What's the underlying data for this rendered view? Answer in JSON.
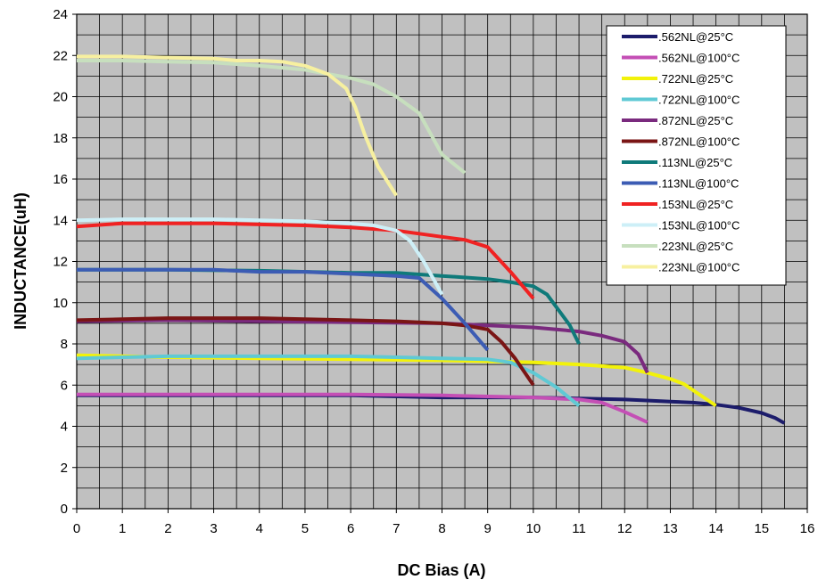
{
  "chart_data": {
    "type": "line",
    "title": "",
    "xlabel": "DC Bias (A)",
    "ylabel": "INDUCTANCE(uH)",
    "xlim": [
      0,
      16
    ],
    "ylim": [
      0,
      24
    ],
    "xticks": [
      "0",
      "1",
      "2",
      "3",
      "4",
      "5",
      "6",
      "7",
      "8",
      "9",
      "10",
      "11",
      "12",
      "13",
      "14",
      "15",
      "16"
    ],
    "yticks": [
      "0",
      "2",
      "4",
      "6",
      "8",
      "10",
      "12",
      "14",
      "16",
      "18",
      "20",
      "22",
      "24"
    ],
    "grid": true,
    "plot_background": "#c0c0c0",
    "legend_position": "top-right",
    "series": [
      {
        "name": ".562NL@25°C",
        "color": "#1c1c6b",
        "points": [
          [
            0,
            5.5
          ],
          [
            2,
            5.5
          ],
          [
            4,
            5.5
          ],
          [
            6,
            5.5
          ],
          [
            8,
            5.4
          ],
          [
            10,
            5.4
          ],
          [
            11,
            5.35
          ],
          [
            12,
            5.3
          ],
          [
            13,
            5.2
          ],
          [
            13.5,
            5.15
          ],
          [
            14,
            5.05
          ],
          [
            14.5,
            4.9
          ],
          [
            15,
            4.65
          ],
          [
            15.3,
            4.4
          ],
          [
            15.5,
            4.15
          ]
        ]
      },
      {
        "name": ".562NL@100°C",
        "color": "#c44fb5",
        "points": [
          [
            0,
            5.55
          ],
          [
            2,
            5.55
          ],
          [
            4,
            5.55
          ],
          [
            6,
            5.55
          ],
          [
            8,
            5.5
          ],
          [
            10,
            5.4
          ],
          [
            11,
            5.3
          ],
          [
            11.5,
            5.15
          ],
          [
            12,
            4.7
          ],
          [
            12.5,
            4.2
          ]
        ]
      },
      {
        "name": ".722NL@25°C",
        "color": "#f2f20a",
        "points": [
          [
            0,
            7.45
          ],
          [
            2,
            7.35
          ],
          [
            4,
            7.3
          ],
          [
            6,
            7.25
          ],
          [
            8,
            7.2
          ],
          [
            10,
            7.1
          ],
          [
            11,
            7.0
          ],
          [
            12,
            6.85
          ],
          [
            12.5,
            6.6
          ],
          [
            13,
            6.3
          ],
          [
            13.3,
            6.05
          ],
          [
            13.6,
            5.6
          ],
          [
            14,
            5.0
          ]
        ]
      },
      {
        "name": ".722NL@100°C",
        "color": "#5fc9d4",
        "points": [
          [
            0,
            7.3
          ],
          [
            2,
            7.4
          ],
          [
            4,
            7.4
          ],
          [
            6,
            7.4
          ],
          [
            7,
            7.35
          ],
          [
            8,
            7.3
          ],
          [
            9,
            7.25
          ],
          [
            9.5,
            7.1
          ],
          [
            10,
            6.6
          ],
          [
            10.5,
            5.9
          ],
          [
            11,
            5.0
          ]
        ]
      },
      {
        "name": ".872NL@25°C",
        "color": "#7a2a7e",
        "points": [
          [
            0,
            9.1
          ],
          [
            2,
            9.15
          ],
          [
            4,
            9.1
          ],
          [
            6,
            9.05
          ],
          [
            8,
            9.0
          ],
          [
            9,
            8.9
          ],
          [
            10,
            8.8
          ],
          [
            10.5,
            8.7
          ],
          [
            11,
            8.6
          ],
          [
            11.5,
            8.4
          ],
          [
            12,
            8.1
          ],
          [
            12.3,
            7.5
          ],
          [
            12.5,
            6.6
          ]
        ]
      },
      {
        "name": ".872NL@100°C",
        "color": "#7a1515",
        "points": [
          [
            0,
            9.15
          ],
          [
            1,
            9.2
          ],
          [
            2,
            9.25
          ],
          [
            4,
            9.25
          ],
          [
            6,
            9.15
          ],
          [
            7,
            9.1
          ],
          [
            8,
            9.0
          ],
          [
            8.5,
            8.9
          ],
          [
            9,
            8.7
          ],
          [
            9.3,
            8.1
          ],
          [
            9.6,
            7.3
          ],
          [
            10,
            6.0
          ]
        ]
      },
      {
        "name": ".113NL@25°C",
        "color": "#0f7a7a",
        "points": [
          [
            0,
            11.6
          ],
          [
            2,
            11.6
          ],
          [
            4,
            11.55
          ],
          [
            6,
            11.45
          ],
          [
            7,
            11.45
          ],
          [
            8,
            11.3
          ],
          [
            9,
            11.15
          ],
          [
            9.5,
            11.0
          ],
          [
            10,
            10.8
          ],
          [
            10.3,
            10.4
          ],
          [
            10.6,
            9.5
          ],
          [
            10.8,
            8.9
          ],
          [
            11,
            8.0
          ]
        ]
      },
      {
        "name": ".113NL@100°C",
        "color": "#3c5cb4",
        "points": [
          [
            0,
            11.6
          ],
          [
            1,
            11.6
          ],
          [
            2,
            11.6
          ],
          [
            3,
            11.6
          ],
          [
            4,
            11.5
          ],
          [
            5,
            11.5
          ],
          [
            6,
            11.4
          ],
          [
            7,
            11.3
          ],
          [
            7.5,
            11.2
          ],
          [
            8,
            10.2
          ],
          [
            8.5,
            9.0
          ],
          [
            9,
            7.7
          ]
        ]
      },
      {
        "name": ".153NL@25°C",
        "color": "#f02222",
        "points": [
          [
            0,
            13.7
          ],
          [
            1,
            13.85
          ],
          [
            2,
            13.85
          ],
          [
            3,
            13.85
          ],
          [
            4,
            13.8
          ],
          [
            5,
            13.75
          ],
          [
            6,
            13.65
          ],
          [
            7,
            13.5
          ],
          [
            8,
            13.2
          ],
          [
            8.5,
            13.05
          ],
          [
            9,
            12.7
          ],
          [
            9.5,
            11.5
          ],
          [
            10,
            10.2
          ]
        ]
      },
      {
        "name": ".153NL@100°C",
        "color": "#cdeff7",
        "points": [
          [
            0,
            14.0
          ],
          [
            1,
            14.05
          ],
          [
            2,
            14.05
          ],
          [
            3,
            14.05
          ],
          [
            4,
            14.0
          ],
          [
            5,
            13.95
          ],
          [
            6,
            13.85
          ],
          [
            6.5,
            13.75
          ],
          [
            7,
            13.5
          ],
          [
            7.3,
            13.0
          ],
          [
            7.6,
            12.0
          ],
          [
            8,
            10.4
          ]
        ]
      },
      {
        "name": ".223NL@25°C",
        "color": "#c7dfbe",
        "points": [
          [
            0,
            21.75
          ],
          [
            1,
            21.75
          ],
          [
            2,
            21.7
          ],
          [
            3,
            21.65
          ],
          [
            4,
            21.5
          ],
          [
            5,
            21.3
          ],
          [
            6,
            20.9
          ],
          [
            6.5,
            20.6
          ],
          [
            7,
            20.0
          ],
          [
            7.5,
            19.2
          ],
          [
            8,
            17.2
          ],
          [
            8.5,
            16.3
          ]
        ]
      },
      {
        "name": ".223NL@100°C",
        "color": "#f7f0a0",
        "points": [
          [
            0,
            21.95
          ],
          [
            1,
            21.95
          ],
          [
            2,
            21.9
          ],
          [
            3,
            21.85
          ],
          [
            3.5,
            21.75
          ],
          [
            4,
            21.75
          ],
          [
            4.5,
            21.7
          ],
          [
            5,
            21.5
          ],
          [
            5.5,
            21.1
          ],
          [
            5.9,
            20.4
          ],
          [
            6.1,
            19.5
          ],
          [
            6.3,
            18.2
          ],
          [
            6.6,
            16.6
          ],
          [
            7,
            15.2
          ]
        ]
      }
    ]
  }
}
